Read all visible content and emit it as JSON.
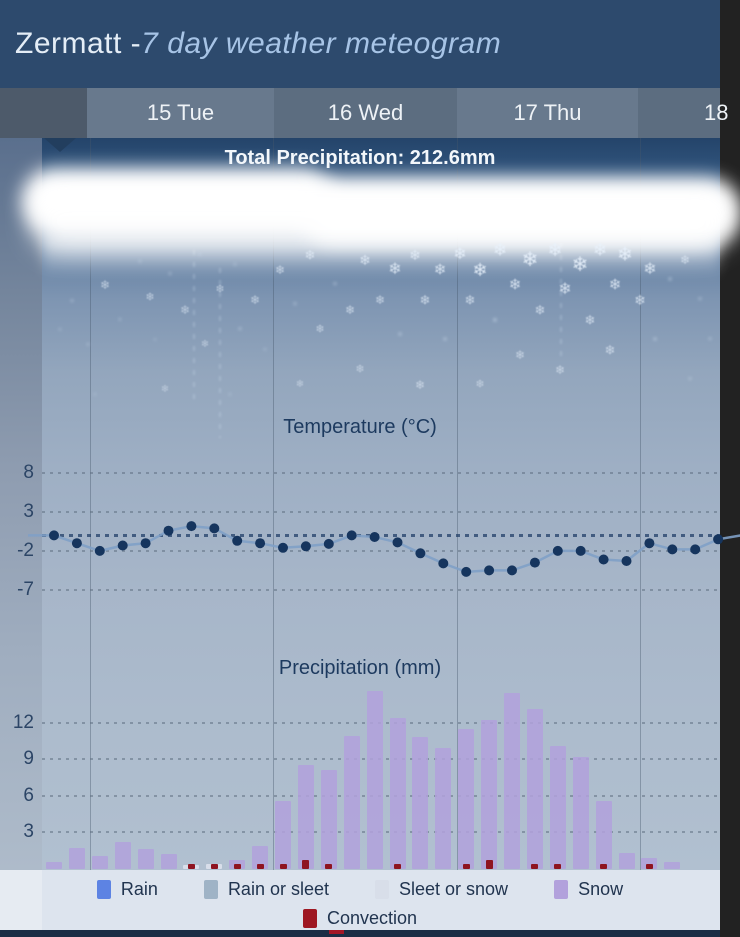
{
  "header": {
    "title_prefix": "Zermatt - ",
    "title_italic": "7 day weather meteogram"
  },
  "days": [
    "",
    "15 Tue",
    "16 Wed",
    "17 Thu",
    "18"
  ],
  "total_precipitation_label": "Total Precipitation: 212.6mm",
  "chart_data": [
    {
      "type": "line",
      "title": "Temperature (°C)",
      "ylabel": "°C",
      "yticks": [
        8,
        3,
        -2,
        -7
      ],
      "x_interval": "3h",
      "freezing_line": 0,
      "values": [
        0,
        -1,
        -2,
        -1.3,
        -1,
        0.6,
        1.2,
        0.9,
        -0.7,
        -1,
        -1.6,
        -1.4,
        -1.1,
        0,
        -0.2,
        -0.9,
        -2.3,
        -3.6,
        -4.7,
        -4.5,
        -4.5,
        -3.5,
        -2,
        -2,
        -3.1,
        -3.3,
        -1,
        -1.8,
        -1.8,
        -0.5
      ]
    },
    {
      "type": "bar",
      "title": "Precipitation (mm)",
      "ylabel": "mm",
      "yticks": [
        12,
        9,
        6,
        3
      ],
      "x_interval": "3h",
      "values": [
        0.6,
        1.7,
        1.1,
        2.2,
        1.6,
        1.2,
        0.3,
        0.4,
        0.7,
        1.9,
        5.6,
        8.5,
        8.1,
        10.9,
        14.6,
        12.4,
        10.8,
        9.9,
        11.5,
        12.2,
        14.4,
        13.1,
        10.1,
        9.2,
        5.6,
        1.3,
        0.9,
        0.6
      ],
      "sleet_or_snow_indices": [
        6,
        7
      ],
      "convection_indices": [
        6,
        7,
        8,
        9,
        10,
        11,
        12,
        15,
        18,
        19,
        21,
        22,
        24,
        26
      ],
      "convection_strong_indices": [
        11,
        19
      ]
    }
  ],
  "legend": {
    "rows": [
      [
        {
          "key": "rain",
          "label": "Rain",
          "color": "#5d83e3"
        },
        {
          "key": "rain-or-sleet",
          "label": "Rain or sleet",
          "color": "#9fb3c6"
        },
        {
          "key": "sleet-or-snow",
          "label": "Sleet or snow",
          "color": "#d8dee9"
        },
        {
          "key": "snow",
          "label": "Snow",
          "color": "#b2a1dc"
        }
      ],
      [
        {
          "key": "convection",
          "label": "Convection",
          "color": "#9e1722"
        }
      ]
    ]
  },
  "colors": {
    "header_bg": "#2d4a6d",
    "snow_bar": "#b2a1dc",
    "sleet_or_snow_bar": "#d8dee9",
    "convection": "#8e1420",
    "temp_dot": "#16355e",
    "temp_line": "#7fa0c6"
  },
  "snowflakes": [
    [
      72,
      302,
      10,
      0.5,
      0
    ],
    [
      60,
      330,
      9,
      0.45,
      0
    ],
    [
      88,
      345,
      9,
      0.5,
      0
    ],
    [
      105,
      285,
      12,
      0.6,
      1
    ],
    [
      120,
      320,
      9,
      0.5,
      0
    ],
    [
      140,
      262,
      9,
      0.55,
      0
    ],
    [
      150,
      298,
      11,
      0.6,
      1
    ],
    [
      155,
      340,
      8,
      0.45,
      0
    ],
    [
      170,
      275,
      10,
      0.5,
      0
    ],
    [
      185,
      310,
      12,
      0.55,
      1
    ],
    [
      200,
      255,
      9,
      0.5,
      0
    ],
    [
      205,
      345,
      10,
      0.5,
      1
    ],
    [
      220,
      290,
      11,
      0.6,
      1
    ],
    [
      235,
      265,
      9,
      0.5,
      0
    ],
    [
      240,
      330,
      10,
      0.55,
      0
    ],
    [
      255,
      300,
      12,
      0.6,
      1
    ],
    [
      265,
      350,
      9,
      0.45,
      0
    ],
    [
      95,
      395,
      9,
      0.4,
      0
    ],
    [
      165,
      390,
      10,
      0.45,
      1
    ],
    [
      230,
      395,
      9,
      0.4,
      0
    ],
    [
      280,
      270,
      12,
      0.65,
      1
    ],
    [
      295,
      305,
      10,
      0.55,
      0
    ],
    [
      310,
      255,
      13,
      0.7,
      1
    ],
    [
      320,
      330,
      11,
      0.6,
      1
    ],
    [
      335,
      285,
      10,
      0.6,
      0
    ],
    [
      350,
      310,
      12,
      0.65,
      1
    ],
    [
      365,
      260,
      14,
      0.75,
      1
    ],
    [
      380,
      300,
      12,
      0.65,
      1
    ],
    [
      395,
      270,
      16,
      0.8,
      1
    ],
    [
      400,
      335,
      11,
      0.6,
      0
    ],
    [
      415,
      255,
      14,
      0.75,
      1
    ],
    [
      425,
      300,
      13,
      0.7,
      1
    ],
    [
      440,
      270,
      15,
      0.8,
      1
    ],
    [
      300,
      385,
      10,
      0.5,
      1
    ],
    [
      360,
      370,
      11,
      0.55,
      1
    ],
    [
      420,
      385,
      12,
      0.6,
      1
    ],
    [
      445,
      340,
      11,
      0.6,
      0
    ],
    [
      460,
      255,
      16,
      0.85,
      1
    ],
    [
      470,
      300,
      13,
      0.7,
      1
    ],
    [
      480,
      270,
      18,
      0.9,
      1
    ],
    [
      495,
      320,
      12,
      0.65,
      0
    ],
    [
      500,
      250,
      17,
      0.85,
      1
    ],
    [
      515,
      285,
      15,
      0.8,
      1
    ],
    [
      530,
      260,
      20,
      0.9,
      1
    ],
    [
      540,
      310,
      13,
      0.7,
      1
    ],
    [
      555,
      250,
      18,
      0.85,
      1
    ],
    [
      565,
      290,
      16,
      0.8,
      1
    ],
    [
      580,
      265,
      20,
      0.9,
      1
    ],
    [
      590,
      320,
      13,
      0.7,
      1
    ],
    [
      600,
      250,
      17,
      0.85,
      1
    ],
    [
      615,
      285,
      15,
      0.8,
      1
    ],
    [
      625,
      255,
      19,
      0.9,
      1
    ],
    [
      640,
      300,
      14,
      0.75,
      1
    ],
    [
      650,
      270,
      16,
      0.8,
      1
    ],
    [
      520,
      355,
      12,
      0.6,
      1
    ],
    [
      560,
      370,
      12,
      0.6,
      1
    ],
    [
      610,
      350,
      13,
      0.65,
      1
    ],
    [
      480,
      385,
      11,
      0.55,
      1
    ],
    [
      655,
      340,
      11,
      0.6,
      0
    ],
    [
      670,
      280,
      11,
      0.6,
      0
    ],
    [
      685,
      260,
      12,
      0.65,
      1
    ],
    [
      700,
      300,
      10,
      0.55,
      0
    ],
    [
      710,
      340,
      10,
      0.5,
      0
    ],
    [
      690,
      380,
      10,
      0.5,
      0
    ]
  ]
}
